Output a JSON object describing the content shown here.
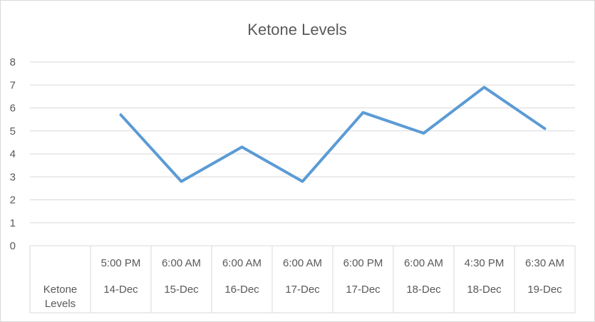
{
  "chart_data": {
    "type": "line",
    "title": "Ketone Levels",
    "xlabel": "",
    "ylabel": "",
    "ylim": [
      0,
      8
    ],
    "yticks": [
      "0",
      "1",
      "2",
      "3",
      "4",
      "5",
      "6",
      "7",
      "8"
    ],
    "grid": true,
    "table_row_label": [
      "Ketone",
      "Levels"
    ],
    "categories": [
      {
        "time": "5:00 PM",
        "date": "14-Dec"
      },
      {
        "time": "6:00 AM",
        "date": "15-Dec"
      },
      {
        "time": "6:00 AM",
        "date": "16-Dec"
      },
      {
        "time": "6:00 AM",
        "date": "17-Dec"
      },
      {
        "time": "6:00 PM",
        "date": "17-Dec"
      },
      {
        "time": "6:00 AM",
        "date": "18-Dec"
      },
      {
        "time": "4:30 PM",
        "date": "18-Dec"
      },
      {
        "time": "6:30 AM",
        "date": "19-Dec"
      }
    ],
    "series": [
      {
        "values": [
          5.7,
          2.8,
          4.3,
          2.8,
          5.8,
          4.9,
          6.9,
          5.1
        ],
        "color": "#5b9bd5"
      }
    ],
    "colors": {
      "grid": "#d9d9d9",
      "text": "#595959",
      "line": "#5b9bd5"
    }
  }
}
